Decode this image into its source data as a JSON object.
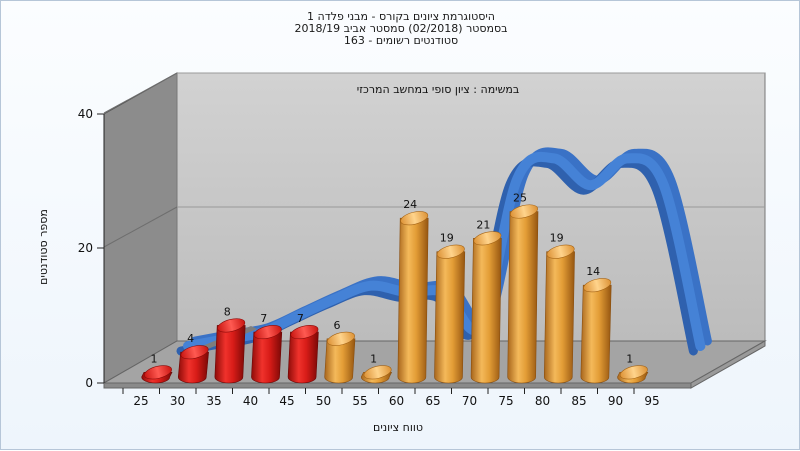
{
  "chart_data": {
    "type": "bar",
    "title": [
      "היסטוגרמת ציונים בקורס - מבני פלדה 1",
      "בסמסטר  (02/2018)  סמסטר אביב 2018/19",
      "סטודנטים רשומים - 163"
    ],
    "subtitle": "במשימה : ציון סופי במחשב המרכזי",
    "xlabel": "טווח ציונים",
    "ylabel": "מספר סטודנטים",
    "categories": [
      "25",
      "30",
      "35",
      "40",
      "45",
      "50",
      "55",
      "60",
      "65",
      "70",
      "75",
      "80",
      "85",
      "90",
      "95"
    ],
    "x_ticks": [
      "25",
      "30",
      "35",
      "40",
      "45",
      "50",
      "55",
      "60",
      "65",
      "70",
      "75",
      "80",
      "85",
      "90",
      "95"
    ],
    "y_ticks": [
      "0",
      "20",
      "40"
    ],
    "ylim": [
      0,
      40
    ],
    "bars": [
      {
        "label": "1",
        "value": 1,
        "color": "#e0201c"
      },
      {
        "label": "4",
        "value": 4,
        "color": "#e0201c"
      },
      {
        "label": "8",
        "value": 8,
        "color": "#e0201c"
      },
      {
        "label": "7",
        "value": 7,
        "color": "#e0201c"
      },
      {
        "label": "7",
        "value": 7,
        "color": "#e0201c"
      },
      {
        "label": "6",
        "value": 6,
        "color": "#e7a43c"
      },
      {
        "label": "1",
        "value": 1,
        "color": "#e7a43c"
      },
      {
        "label": "24",
        "value": 24,
        "color": "#e7a43c"
      },
      {
        "label": "19",
        "value": 19,
        "color": "#e7a43c"
      },
      {
        "label": "21",
        "value": 21,
        "color": "#e7a43c"
      },
      {
        "label": "25",
        "value": 25,
        "color": "#e7a43c"
      },
      {
        "label": "19",
        "value": 19,
        "color": "#e7a43c"
      },
      {
        "label": "14",
        "value": 14,
        "color": "#e7a43c"
      },
      {
        "label": "1",
        "value": 1,
        "color": "#e7a43c"
      }
    ],
    "curve_values": [
      0,
      1,
      2,
      4.5,
      7,
      9,
      8,
      8,
      3,
      25,
      28,
      24,
      28,
      24,
      0
    ],
    "colors": {
      "fail": "#e0201c",
      "pass": "#e7a43c",
      "curve": "#3a72c6",
      "back_wall": "#c8c8c8",
      "side_wall": "#8a8a8a",
      "floor": "#a6a6a6"
    },
    "grid": true
  }
}
